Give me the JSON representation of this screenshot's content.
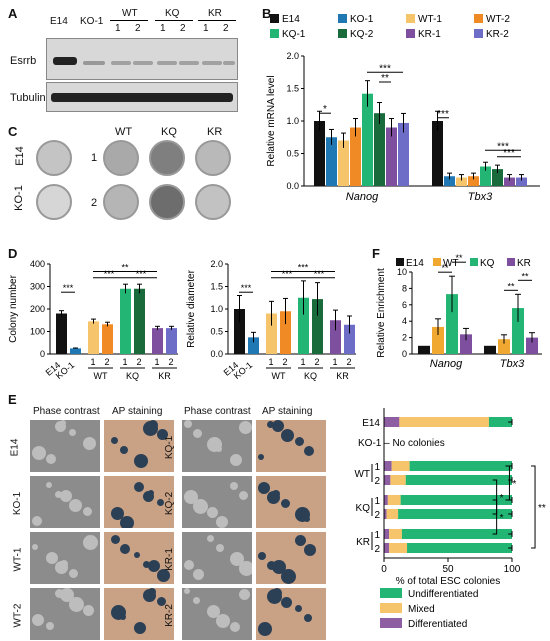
{
  "panels": {
    "A": "A",
    "B": "B",
    "C": "C",
    "D": "D",
    "E": "E",
    "F": "F"
  },
  "panelA": {
    "lanes": [
      "E14",
      "KO-1"
    ],
    "groups": [
      "WT",
      "KQ",
      "KR"
    ],
    "sub": [
      "1",
      "2",
      "1",
      "2",
      "1",
      "2"
    ],
    "rows": [
      "Esrrb",
      "Tubulin"
    ]
  },
  "panelC": {
    "cols": [
      "WT",
      "KQ",
      "KR"
    ],
    "rows": [
      "E14",
      "KO-1"
    ],
    "rownums": [
      "1",
      "2"
    ]
  },
  "colors": {
    "E14": "#111111",
    "KO1": "#1f77b4",
    "WT1": "#f6c56b",
    "WT2": "#f08a24",
    "KQ1": "#22b573",
    "KQ2": "#1a6b3c",
    "KR1": "#7d4f9e",
    "KR2": "#6d6cc6",
    "WT": "#f0a830",
    "KQ": "#22b573",
    "KR": "#7d4f9e",
    "undiff": "#22b573",
    "mixed": "#f6c56b",
    "diff": "#8e5ea2"
  },
  "chartB": {
    "type": "bar",
    "legend": [
      "E14",
      "KO-1",
      "WT-1",
      "WT-2",
      "KQ-1",
      "KQ-2",
      "KR-1",
      "KR-2"
    ],
    "ylabel": "Relative mRNA level",
    "yticks": [
      "0.0",
      "0.5",
      "1.0",
      "1.5",
      "2.0"
    ],
    "ylim": [
      0,
      2.0
    ],
    "categories": [
      "Nanog",
      "Tbx3"
    ],
    "series": [
      {
        "name": "E14",
        "values": [
          1.0,
          1.0
        ]
      },
      {
        "name": "KO-1",
        "values": [
          0.75,
          0.15
        ]
      },
      {
        "name": "WT-1",
        "values": [
          0.7,
          0.13
        ]
      },
      {
        "name": "WT-2",
        "values": [
          0.9,
          0.15
        ]
      },
      {
        "name": "KQ-1",
        "values": [
          1.42,
          0.3
        ]
      },
      {
        "name": "KQ-2",
        "values": [
          1.12,
          0.26
        ]
      },
      {
        "name": "KR-1",
        "values": [
          0.9,
          0.13
        ]
      },
      {
        "name": "KR-2",
        "values": [
          0.97,
          0.13
        ]
      }
    ],
    "sig": [
      "*",
      "***",
      "**",
      "***",
      "***",
      "***"
    ]
  },
  "chartD1": {
    "type": "bar",
    "ylabel": "Colony number",
    "yticks": [
      "0",
      "100",
      "200",
      "300",
      "400"
    ],
    "ylim": [
      0,
      400
    ],
    "categories": [
      "E14",
      "KO-1",
      "1",
      "2",
      "1",
      "2",
      "1",
      "2"
    ],
    "groups": [
      "WT",
      "KQ",
      "KR"
    ],
    "values": [
      180,
      25,
      145,
      132,
      290,
      290,
      115,
      115
    ],
    "sig": [
      "***",
      "**",
      "***",
      "***"
    ]
  },
  "chartD2": {
    "type": "bar",
    "ylabel": "Relative diameter",
    "yticks": [
      "0.0",
      "0.5",
      "1.0",
      "1.5",
      "2.0"
    ],
    "ylim": [
      0,
      2.0
    ],
    "categories": [
      "E14",
      "KO-1",
      "1",
      "2",
      "1",
      "2",
      "1",
      "2"
    ],
    "groups": [
      "WT",
      "KQ",
      "KR"
    ],
    "values": [
      1.0,
      0.37,
      0.9,
      0.95,
      1.25,
      1.22,
      0.75,
      0.65
    ],
    "sig": [
      "***",
      "***",
      "***",
      "***"
    ]
  },
  "chartF": {
    "type": "bar",
    "legend": [
      "E14",
      "WT",
      "KQ",
      "KR"
    ],
    "ylabel": "Relative Enrichment",
    "yticks": [
      "0",
      "2",
      "4",
      "6",
      "8",
      "10"
    ],
    "ylim": [
      0,
      10
    ],
    "categories": [
      "Nanog",
      "Tbx3"
    ],
    "series": [
      {
        "name": "E14",
        "values": [
          1.0,
          1.0
        ]
      },
      {
        "name": "WT",
        "values": [
          3.3,
          1.8
        ]
      },
      {
        "name": "KQ",
        "values": [
          7.3,
          5.6
        ]
      },
      {
        "name": "KR",
        "values": [
          2.4,
          2.0
        ]
      }
    ],
    "sig": [
      "**",
      "**",
      "**",
      "**"
    ]
  },
  "panelE": {
    "headers": [
      "Phase contrast",
      "AP staining",
      "Phase contrast",
      "AP staining"
    ],
    "left": [
      "E14",
      "KO-1",
      "WT-1",
      "WT-2"
    ],
    "right": [
      "KQ-1",
      "KQ-2",
      "KR-1",
      "KR-2"
    ]
  },
  "chartE": {
    "type": "bar",
    "xlabel": "% of total  ESC colonies",
    "xticks": [
      "0",
      "50",
      "100"
    ],
    "xlim": [
      0,
      100
    ],
    "no_colonies": "KO-1 – No colonies",
    "rows": [
      "E14",
      "1",
      "2",
      "1",
      "2",
      "1",
      "2"
    ],
    "groups": [
      "WT",
      "KQ",
      "KR"
    ],
    "series": [
      {
        "name": "Undifferentiated",
        "values": [
          18,
          80,
          83,
          87,
          89,
          86,
          82
        ]
      },
      {
        "name": "Mixed",
        "values": [
          70,
          14,
          12,
          10,
          9,
          10,
          14
        ]
      },
      {
        "name": "Differentiated",
        "values": [
          12,
          6,
          5,
          3,
          2,
          4,
          4
        ]
      }
    ],
    "sig": [
      "*",
      "*",
      "*",
      "**"
    ]
  }
}
